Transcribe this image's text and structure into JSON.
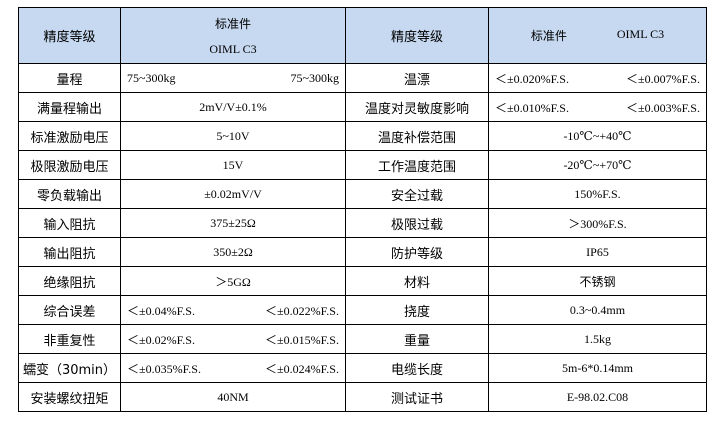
{
  "table": {
    "header": [
      "精度等级",
      [
        "标准件",
        "OIML C3"
      ],
      "精度等级",
      [
        "标准件",
        "OIML C3"
      ]
    ],
    "rows": [
      [
        "量程",
        [
          "75~300kg",
          "75~300kg"
        ],
        "温漂",
        [
          "＜±0.020%F.S.",
          "＜±0.007%F.S."
        ]
      ],
      [
        "满量程输出",
        "2mV/V±0.1%",
        "温度对灵敏度影响",
        [
          "＜±0.010%F.S.",
          "＜±0.003%F.S."
        ]
      ],
      [
        "标准激励电压",
        "5~10V",
        "温度补偿范围",
        "-10℃~+40℃"
      ],
      [
        "极限激励电压",
        "15V",
        "工作温度范围",
        "-20℃~+70℃"
      ],
      [
        "零负载输出",
        "±0.02mV/V",
        "安全过载",
        "150%F.S."
      ],
      [
        "输入阻抗",
        "375±25Ω",
        "极限过载",
        "＞300%F.S."
      ],
      [
        "输出阻抗",
        "350±2Ω",
        "防护等级",
        "IP65"
      ],
      [
        "绝缘阻抗",
        "＞5GΩ",
        "材料",
        "不锈钢"
      ],
      [
        "综合误差",
        [
          "＜±0.04%F.S.",
          "＜±0.022%F.S."
        ],
        "挠度",
        "0.3~0.4mm"
      ],
      [
        "非重复性",
        [
          "＜±0.02%F.S.",
          "＜±0.015%F.S."
        ],
        "重量",
        "1.5kg"
      ],
      [
        "蠕变（30min）",
        [
          "＜±0.035%F.S.",
          "＜±0.024%F.S."
        ],
        "电缆长度",
        "5m-6*0.14mm"
      ],
      [
        "安装螺纹扭矩",
        "40NM",
        "测试证书",
        "E-98.02.C08"
      ]
    ]
  }
}
